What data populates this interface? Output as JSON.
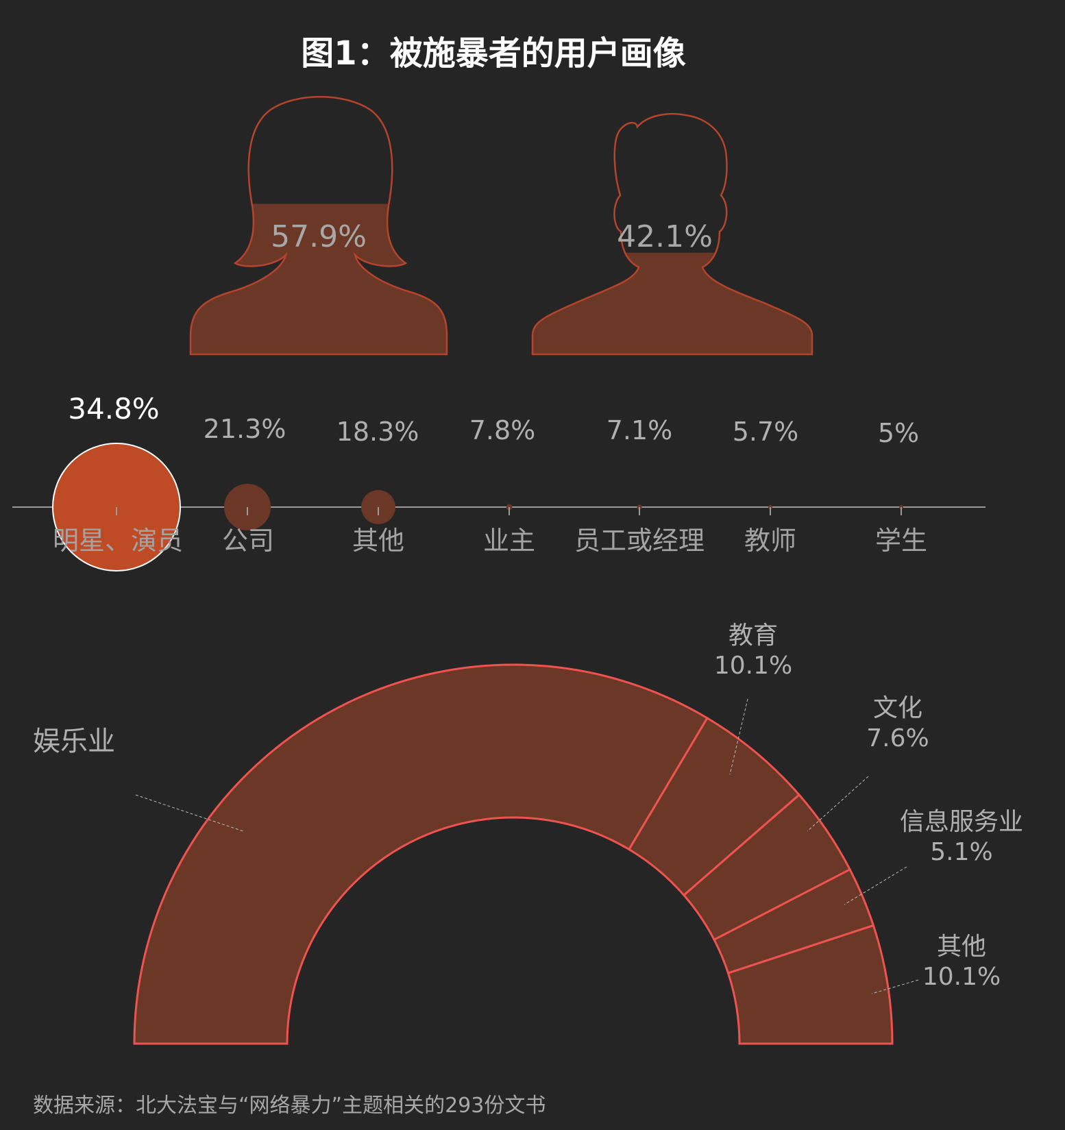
{
  "title": "图1：被施暴者的用户画像",
  "gender": [
    {
      "label": "female",
      "value": 57.9,
      "text": "57.9%"
    },
    {
      "label": "male",
      "value": 42.1,
      "text": "42.1%"
    }
  ],
  "colors": {
    "background": "#252525",
    "fill_dark": "#6b3828",
    "fill_highlight": "#bf4a26",
    "outline": "#b5442c",
    "donut_stroke": "#ef5350",
    "axis": "#9a9a9a"
  },
  "chart_data": [
    {
      "type": "bubble",
      "categories": [
        "明星、演员",
        "公司",
        "其他",
        "业主",
        "员工或经理",
        "教师",
        "学生"
      ],
      "values": [
        34.8,
        21.3,
        18.3,
        7.8,
        7.1,
        5.7,
        5
      ],
      "labels": [
        "34.8%",
        "21.3%",
        "18.3%",
        "7.8%",
        "7.1%",
        "5.7%",
        "5%"
      ]
    },
    {
      "type": "pie",
      "subtype": "semi-donut",
      "categories": [
        "娱乐业",
        "教育",
        "文化",
        "信息服务业",
        "其他"
      ],
      "values": [
        67.1,
        10.1,
        7.6,
        5.1,
        10.1
      ],
      "labels": [
        "",
        "10.1%",
        "7.6%",
        "5.1%",
        "10.1%"
      ]
    }
  ],
  "source": "数据来源：北大法宝与“网络暴力”主题相关的293份文书"
}
